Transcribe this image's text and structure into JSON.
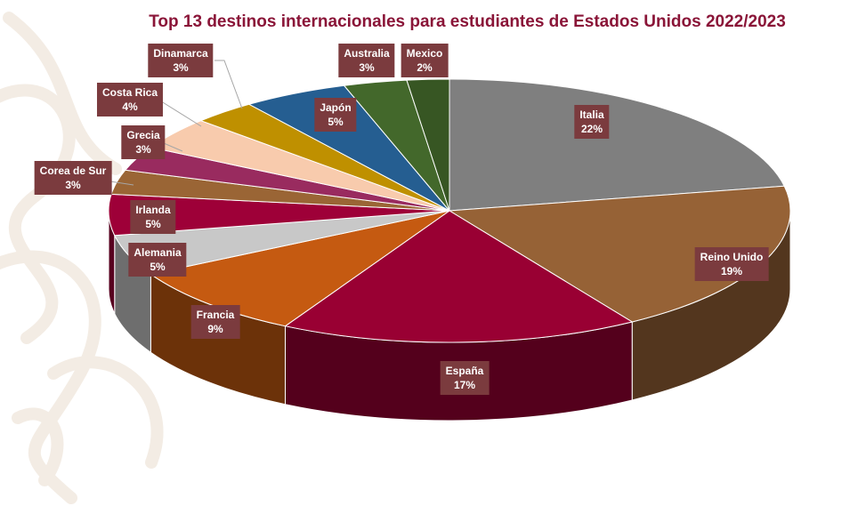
{
  "chart_data": {
    "type": "pie",
    "title": "Top 13 destinos internacionales para estudiantes de Estados Unidos 2022/2023",
    "slices": [
      {
        "name": "Italia",
        "value": 22,
        "label": "22%",
        "color": "#7f7f7f"
      },
      {
        "name": "Reino Unido",
        "value": 19,
        "label": "19%",
        "color": "#966236"
      },
      {
        "name": "España",
        "value": 17,
        "label": "17%",
        "color": "#990033"
      },
      {
        "name": "Francia",
        "value": 9,
        "label": "9%",
        "color": "#c55a11"
      },
      {
        "name": "Alemania",
        "value": 5,
        "label": "5%",
        "color": "#c8c8c8"
      },
      {
        "name": "Irlanda",
        "value": 5,
        "label": "5%",
        "color": "#9e0038"
      },
      {
        "name": "Corea de Sur",
        "value": 3,
        "label": "3%",
        "color": "#9a6535"
      },
      {
        "name": "Grecia",
        "value": 3,
        "label": "3%",
        "color": "#992b5f"
      },
      {
        "name": "Costa Rica",
        "value": 4,
        "label": "4%",
        "color": "#f8cbad"
      },
      {
        "name": "Dinamarca",
        "value": 3,
        "label": "3%",
        "color": "#bf9000"
      },
      {
        "name": "Japón",
        "value": 5,
        "label": "5%",
        "color": "#255e91"
      },
      {
        "name": "Australia",
        "value": 3,
        "label": "3%",
        "color": "#43682b"
      },
      {
        "name": "Mexico",
        "value": 2,
        "label": "2%",
        "color": "#375623"
      }
    ]
  }
}
